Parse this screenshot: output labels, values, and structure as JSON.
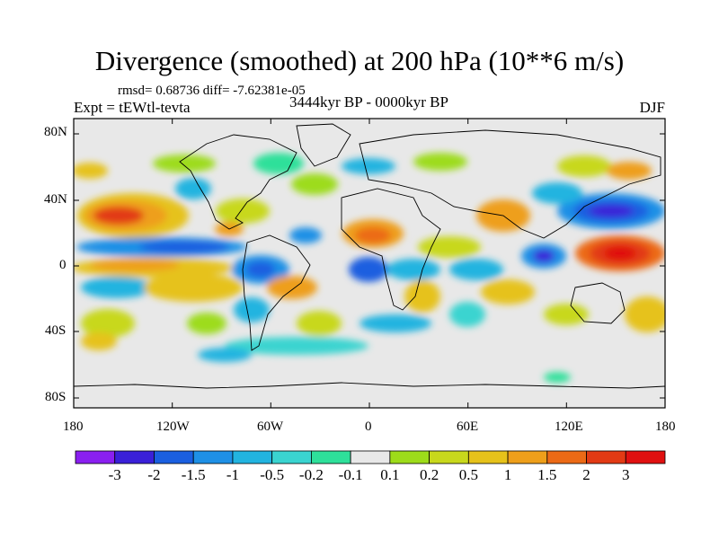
{
  "title": "Divergence (smoothed) at 200 hPa (10**6 m/s)",
  "stats": "rmsd= 0.68736 diff= -7.62381e-05",
  "experiment": "Expt = tEWtl-tevta",
  "period": "3444kyr BP - 0000kyr BP",
  "season": "DJF",
  "map": {
    "lat_labels": [
      "80N",
      "40N",
      "0",
      "40S",
      "80S"
    ],
    "lon_labels": [
      "180",
      "120W",
      "60W",
      "0",
      "60E",
      "120E",
      "180"
    ]
  },
  "colorbar": {
    "labels": [
      "-3",
      "-2",
      "-1.5",
      "-1",
      "-0.5",
      "-0.2",
      "-0.1",
      "0.1",
      "0.2",
      "0.5",
      "1",
      "1.5",
      "2",
      "3"
    ],
    "colors": [
      "#8a1ff0",
      "#3a20d8",
      "#1a5fe0",
      "#1e90e6",
      "#22b4e0",
      "#3ad4d0",
      "#2ee09a",
      "#e8e8e8",
      "#9ddc1a",
      "#c8d81c",
      "#e6c21a",
      "#ee9f1a",
      "#ec6a16",
      "#e23a14",
      "#e01010"
    ]
  },
  "legend_colors": {
    "background_neutral": "#e8e8e8",
    "coastline": "#000000"
  }
}
